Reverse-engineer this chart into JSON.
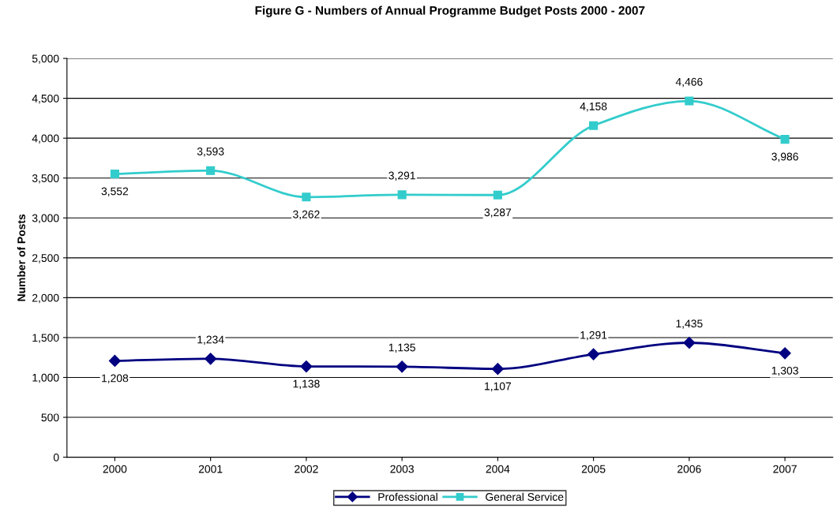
{
  "chart_data": {
    "type": "line",
    "title": "Figure G - Numbers of Annual Programme Budget Posts 2000 - 2007",
    "ylabel": "Number of Posts",
    "categories": [
      "2000",
      "2001",
      "2002",
      "2003",
      "2004",
      "2005",
      "2006",
      "2007"
    ],
    "series": [
      {
        "name": "Professional",
        "color": "#000080",
        "marker": "diamond",
        "values": [
          1208,
          1234,
          1138,
          1135,
          1107,
          1291,
          1435,
          1303
        ],
        "value_labels": [
          "1,208",
          "1,234",
          "1,138",
          "1,135",
          "1,107",
          "1,291",
          "1,435",
          "1,303"
        ]
      },
      {
        "name": "General Service",
        "color": "#33cccc",
        "marker": "square",
        "values": [
          3552,
          3593,
          3262,
          3291,
          3287,
          4158,
          4466,
          3986
        ],
        "value_labels": [
          "3,552",
          "3,593",
          "3,262",
          "3,291",
          "3,287",
          "4,158",
          "4,466",
          "3,986"
        ]
      }
    ],
    "ylim": [
      0,
      5000
    ],
    "yticks": [
      {
        "value": 0,
        "label": "0"
      },
      {
        "value": 500,
        "label": "500"
      },
      {
        "value": 1000,
        "label": "1,000"
      },
      {
        "value": 1500,
        "label": "1,500"
      },
      {
        "value": 2000,
        "label": "2,000"
      },
      {
        "value": 2500,
        "label": "2,500"
      },
      {
        "value": 3000,
        "label": "3,000"
      },
      {
        "value": 3500,
        "label": "3,500"
      },
      {
        "value": 4000,
        "label": "4,000"
      },
      {
        "value": 4500,
        "label": "4,500"
      },
      {
        "value": 5000,
        "label": "5,000"
      }
    ],
    "grid": "y",
    "legend": "bottom",
    "line_style": "solid"
  }
}
